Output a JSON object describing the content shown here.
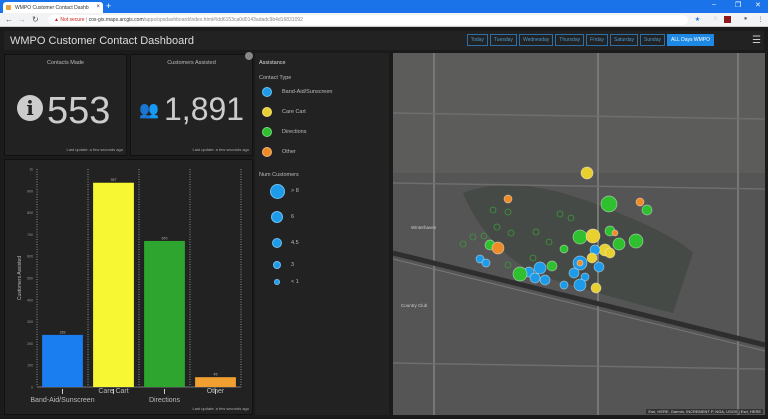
{
  "browser": {
    "tab_title": "WMPO Customer Contact Dashb",
    "security": "Not secure",
    "url_host": "cos-gis.maps.arcgis.com",
    "url_path": "/apps/opsdashboard/index.html#/dd6153ca0d0143adadc9b4d16831092"
  },
  "header": {
    "title": "WMPO Customer Contact Dashboard",
    "days": [
      "Today",
      "Tuesday",
      "Wednesday",
      "Thursday",
      "Friday",
      "Saturday",
      "Sunday",
      "ALL Days WMPO"
    ],
    "active_day": "ALL Days WMPO"
  },
  "contacts": {
    "title": "Contacts Made",
    "value": "553",
    "footer": "Last update: a few seconds ago"
  },
  "customers": {
    "title": "Customers Assisted",
    "value": "1,891",
    "footer": "Last update: a few seconds ago"
  },
  "chart_footer": "Last update: a few seconds ago",
  "chart_data": {
    "type": "bar",
    "title": "",
    "xlabel": "",
    "ylabel": "Customers Assisted",
    "ylim": [
      0,
      1000
    ],
    "yticks": [
      "0",
      "100",
      "200",
      "300",
      "400",
      "500",
      "600",
      "700",
      "800",
      "900",
      "1k"
    ],
    "categories": [
      "Band-Aid/Sunscreen",
      "Care Cart",
      "Directions",
      "Other"
    ],
    "values": [
      239,
      937,
      670,
      45
    ],
    "colors": [
      "#1a7df0",
      "#f7f734",
      "#2ea52e",
      "#f0a030"
    ]
  },
  "legend": {
    "title": "Assistance",
    "contact_type": "Contact Type",
    "types": [
      {
        "label": "Band-Aid/Sunscreen",
        "color": "#1e9be8"
      },
      {
        "label": "Care Cart",
        "color": "#e8d030"
      },
      {
        "label": "Directions",
        "color": "#2ec02e"
      },
      {
        "label": "Other",
        "color": "#f08c28"
      }
    ],
    "num_title": "Num Customers",
    "sizes": [
      "> 8",
      "6",
      "4.5",
      "3",
      "< 1"
    ]
  },
  "map": {
    "labels": [
      "Winterhaven",
      "Country Club"
    ],
    "attribution": "Esri, HERE, Garmin, INCREMENT P, NGA, USGS | Esri, HERE"
  }
}
